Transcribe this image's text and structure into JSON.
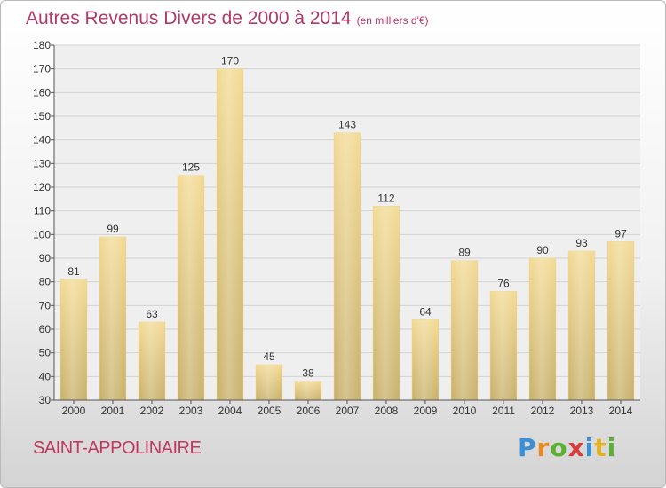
{
  "header": {
    "title": "Autres Revenus Divers de 2000 à 2014",
    "unit": "(en milliers d'€)"
  },
  "footer": {
    "city": "SAINT-APPOLINAIRE",
    "logo": [
      "P",
      "r",
      "o",
      "x",
      "i",
      "t",
      "i"
    ]
  },
  "colors": {
    "bar_top": "#f3da93",
    "bar_bottom": "#c8b06a",
    "title": "#b03a6b",
    "city": "#c0395f"
  },
  "chart_data": {
    "type": "bar",
    "categories": [
      "2000",
      "2001",
      "2002",
      "2003",
      "2004",
      "2005",
      "2006",
      "2007",
      "2008",
      "2009",
      "2010",
      "2011",
      "2012",
      "2013",
      "2014"
    ],
    "values": [
      81,
      99,
      63,
      125,
      170,
      45,
      38,
      143,
      112,
      64,
      89,
      76,
      90,
      93,
      97
    ],
    "ylim": [
      30,
      180
    ],
    "yticks": [
      30,
      40,
      50,
      60,
      70,
      80,
      90,
      100,
      110,
      120,
      130,
      140,
      150,
      160,
      170,
      180
    ],
    "grid": true
  }
}
